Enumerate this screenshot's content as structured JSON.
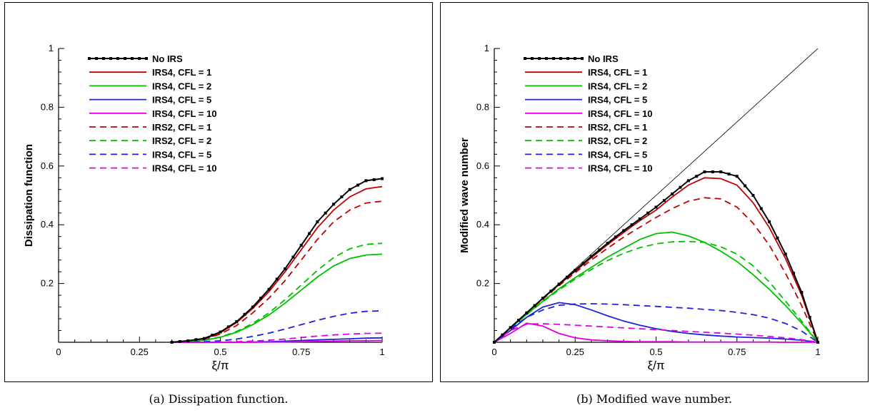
{
  "captions": {
    "a": "(a) Dissipation function.",
    "b": "(b) Modified wave number."
  },
  "legend": [
    {
      "label": "No IRS",
      "color": "#000000",
      "dash": false,
      "markers": true
    },
    {
      "label": "IRS4, CFL = 1",
      "color": "#c00000",
      "dash": false,
      "markers": false
    },
    {
      "label": "IRS4, CFL = 2",
      "color": "#00c000",
      "dash": false,
      "markers": false
    },
    {
      "label": "IRS4, CFL = 5",
      "color": "#2020e0",
      "dash": false,
      "markers": false
    },
    {
      "label": "IRS4, CFL = 10",
      "color": "#e000e0",
      "dash": false,
      "markers": false
    },
    {
      "label": "IRS2, CFL = 1",
      "color": "#c00000",
      "dash": true,
      "markers": false
    },
    {
      "label": "IRS2, CFL = 2",
      "color": "#00c000",
      "dash": true,
      "markers": false
    },
    {
      "label": "IRS4, CFL = 5",
      "color": "#2020e0",
      "dash": true,
      "markers": false
    },
    {
      "label": "IRS4, CFL = 10",
      "color": "#e000e0",
      "dash": true,
      "markers": false
    }
  ],
  "chart_data": [
    {
      "type": "line",
      "xlabel": "ξ/π",
      "ylabel": "Dissipation function",
      "xlim": [
        0,
        1
      ],
      "ylim": [
        0,
        1
      ],
      "xticks": [
        "0",
        "0.25",
        "0.5",
        "0.75",
        "1"
      ],
      "yticks": [
        "0.2",
        "0.4",
        "0.6",
        "0.8",
        "1"
      ],
      "legend_position": "top-left",
      "x": [
        0.35,
        0.4,
        0.45,
        0.5,
        0.55,
        0.6,
        0.65,
        0.7,
        0.75,
        0.8,
        0.85,
        0.9,
        0.95,
        1.0
      ],
      "series": [
        {
          "name": "No IRS",
          "values": [
            0.0,
            0.005,
            0.013,
            0.035,
            0.07,
            0.12,
            0.18,
            0.25,
            0.33,
            0.41,
            0.47,
            0.52,
            0.55,
            0.557
          ]
        },
        {
          "name": "IRS4, CFL = 1",
          "values": [
            0.0,
            0.005,
            0.012,
            0.033,
            0.067,
            0.115,
            0.172,
            0.24,
            0.315,
            0.39,
            0.45,
            0.495,
            0.522,
            0.53
          ]
        },
        {
          "name": "IRS4, CFL = 2",
          "values": [
            0.0,
            0.002,
            0.007,
            0.017,
            0.034,
            0.06,
            0.093,
            0.133,
            0.178,
            0.222,
            0.26,
            0.285,
            0.297,
            0.3
          ]
        },
        {
          "name": "IRS4, CFL = 5",
          "values": [
            0.0,
            0.0,
            0.0,
            0.0,
            0.0,
            0.001,
            0.002,
            0.004,
            0.006,
            0.008,
            0.01,
            0.012,
            0.014,
            0.015
          ]
        },
        {
          "name": "IRS4, CFL = 10",
          "values": [
            0.0,
            0.0,
            0.0,
            0.0,
            0.0,
            0.0,
            0.001,
            0.001,
            0.002,
            0.003,
            0.004,
            0.005,
            0.005,
            0.006
          ]
        },
        {
          "name": "IRS2, CFL = 1",
          "values": [
            0.0,
            0.004,
            0.01,
            0.028,
            0.057,
            0.1,
            0.15,
            0.21,
            0.28,
            0.35,
            0.41,
            0.45,
            0.474,
            0.48
          ]
        },
        {
          "name": "IRS2, CFL = 2",
          "values": [
            0.0,
            0.002,
            0.007,
            0.018,
            0.037,
            0.064,
            0.1,
            0.145,
            0.195,
            0.245,
            0.288,
            0.318,
            0.333,
            0.337
          ]
        },
        {
          "name": "IRS4, CFL = 5",
          "values": [
            0.0,
            0.0,
            0.002,
            0.005,
            0.011,
            0.02,
            0.031,
            0.045,
            0.06,
            0.075,
            0.088,
            0.099,
            0.105,
            0.107
          ]
        },
        {
          "name": "IRS4, CFL = 10",
          "values": [
            0.0,
            0.0,
            0.0,
            0.001,
            0.002,
            0.004,
            0.007,
            0.011,
            0.016,
            0.021,
            0.025,
            0.028,
            0.03,
            0.031
          ]
        }
      ]
    },
    {
      "type": "line",
      "xlabel": "ξ/π",
      "ylabel": "Modified wave number",
      "xlim": [
        0,
        1
      ],
      "ylim": [
        0,
        1
      ],
      "xticks": [
        "0",
        "0.25",
        "0.5",
        "0.75",
        "1"
      ],
      "yticks": [
        "0.2",
        "0.4",
        "0.6",
        "0.8",
        "1"
      ],
      "legend_position": "top-left",
      "reference_line": [
        [
          0,
          0
        ],
        [
          1,
          1
        ]
      ],
      "x": [
        0.0,
        0.05,
        0.1,
        0.15,
        0.2,
        0.25,
        0.3,
        0.35,
        0.4,
        0.45,
        0.5,
        0.55,
        0.6,
        0.65,
        0.7,
        0.75,
        0.8,
        0.85,
        0.9,
        0.95,
        1.0
      ],
      "series": [
        {
          "name": "No IRS",
          "values": [
            0.0,
            0.05,
            0.1,
            0.15,
            0.198,
            0.245,
            0.292,
            0.337,
            0.38,
            0.42,
            0.46,
            0.505,
            0.55,
            0.58,
            0.58,
            0.565,
            0.5,
            0.41,
            0.3,
            0.17,
            0.0
          ]
        },
        {
          "name": "IRS4, CFL = 1",
          "values": [
            0.0,
            0.05,
            0.1,
            0.149,
            0.196,
            0.242,
            0.288,
            0.332,
            0.374,
            0.414,
            0.45,
            0.495,
            0.535,
            0.56,
            0.557,
            0.535,
            0.475,
            0.39,
            0.285,
            0.16,
            0.0
          ]
        },
        {
          "name": "IRS4, CFL = 2",
          "values": [
            0.0,
            0.048,
            0.095,
            0.14,
            0.182,
            0.22,
            0.255,
            0.29,
            0.32,
            0.35,
            0.37,
            0.375,
            0.362,
            0.34,
            0.31,
            0.275,
            0.23,
            0.18,
            0.125,
            0.065,
            0.0
          ]
        },
        {
          "name": "IRS4, CFL = 5",
          "values": [
            0.0,
            0.04,
            0.085,
            0.12,
            0.135,
            0.128,
            0.11,
            0.09,
            0.072,
            0.058,
            0.046,
            0.037,
            0.03,
            0.025,
            0.021,
            0.018,
            0.016,
            0.014,
            0.011,
            0.007,
            0.0
          ]
        },
        {
          "name": "IRS4, CFL = 10",
          "values": [
            0.0,
            0.03,
            0.065,
            0.055,
            0.03,
            0.015,
            0.008,
            0.005,
            0.003,
            0.002,
            0.002,
            0.002,
            0.001,
            0.001,
            0.001,
            0.001,
            0.001,
            0.001,
            0.0,
            0.0,
            0.0
          ]
        },
        {
          "name": "IRS2, CFL = 1",
          "values": [
            0.0,
            0.05,
            0.1,
            0.147,
            0.193,
            0.237,
            0.28,
            0.32,
            0.358,
            0.392,
            0.425,
            0.455,
            0.48,
            0.492,
            0.488,
            0.46,
            0.405,
            0.33,
            0.235,
            0.125,
            0.0
          ]
        },
        {
          "name": "IRS2, CFL = 2",
          "values": [
            0.0,
            0.048,
            0.094,
            0.138,
            0.178,
            0.215,
            0.248,
            0.278,
            0.303,
            0.322,
            0.335,
            0.342,
            0.343,
            0.34,
            0.325,
            0.3,
            0.26,
            0.205,
            0.14,
            0.072,
            0.0
          ]
        },
        {
          "name": "IRS4, CFL = 5",
          "values": [
            0.0,
            0.045,
            0.085,
            0.11,
            0.126,
            0.13,
            0.131,
            0.13,
            0.128,
            0.125,
            0.122,
            0.119,
            0.116,
            0.112,
            0.108,
            0.102,
            0.094,
            0.082,
            0.064,
            0.038,
            0.0
          ]
        },
        {
          "name": "IRS4, CFL = 10",
          "values": [
            0.0,
            0.04,
            0.062,
            0.063,
            0.061,
            0.058,
            0.055,
            0.052,
            0.049,
            0.046,
            0.043,
            0.04,
            0.037,
            0.034,
            0.031,
            0.028,
            0.024,
            0.02,
            0.015,
            0.009,
            0.0
          ]
        }
      ]
    }
  ]
}
